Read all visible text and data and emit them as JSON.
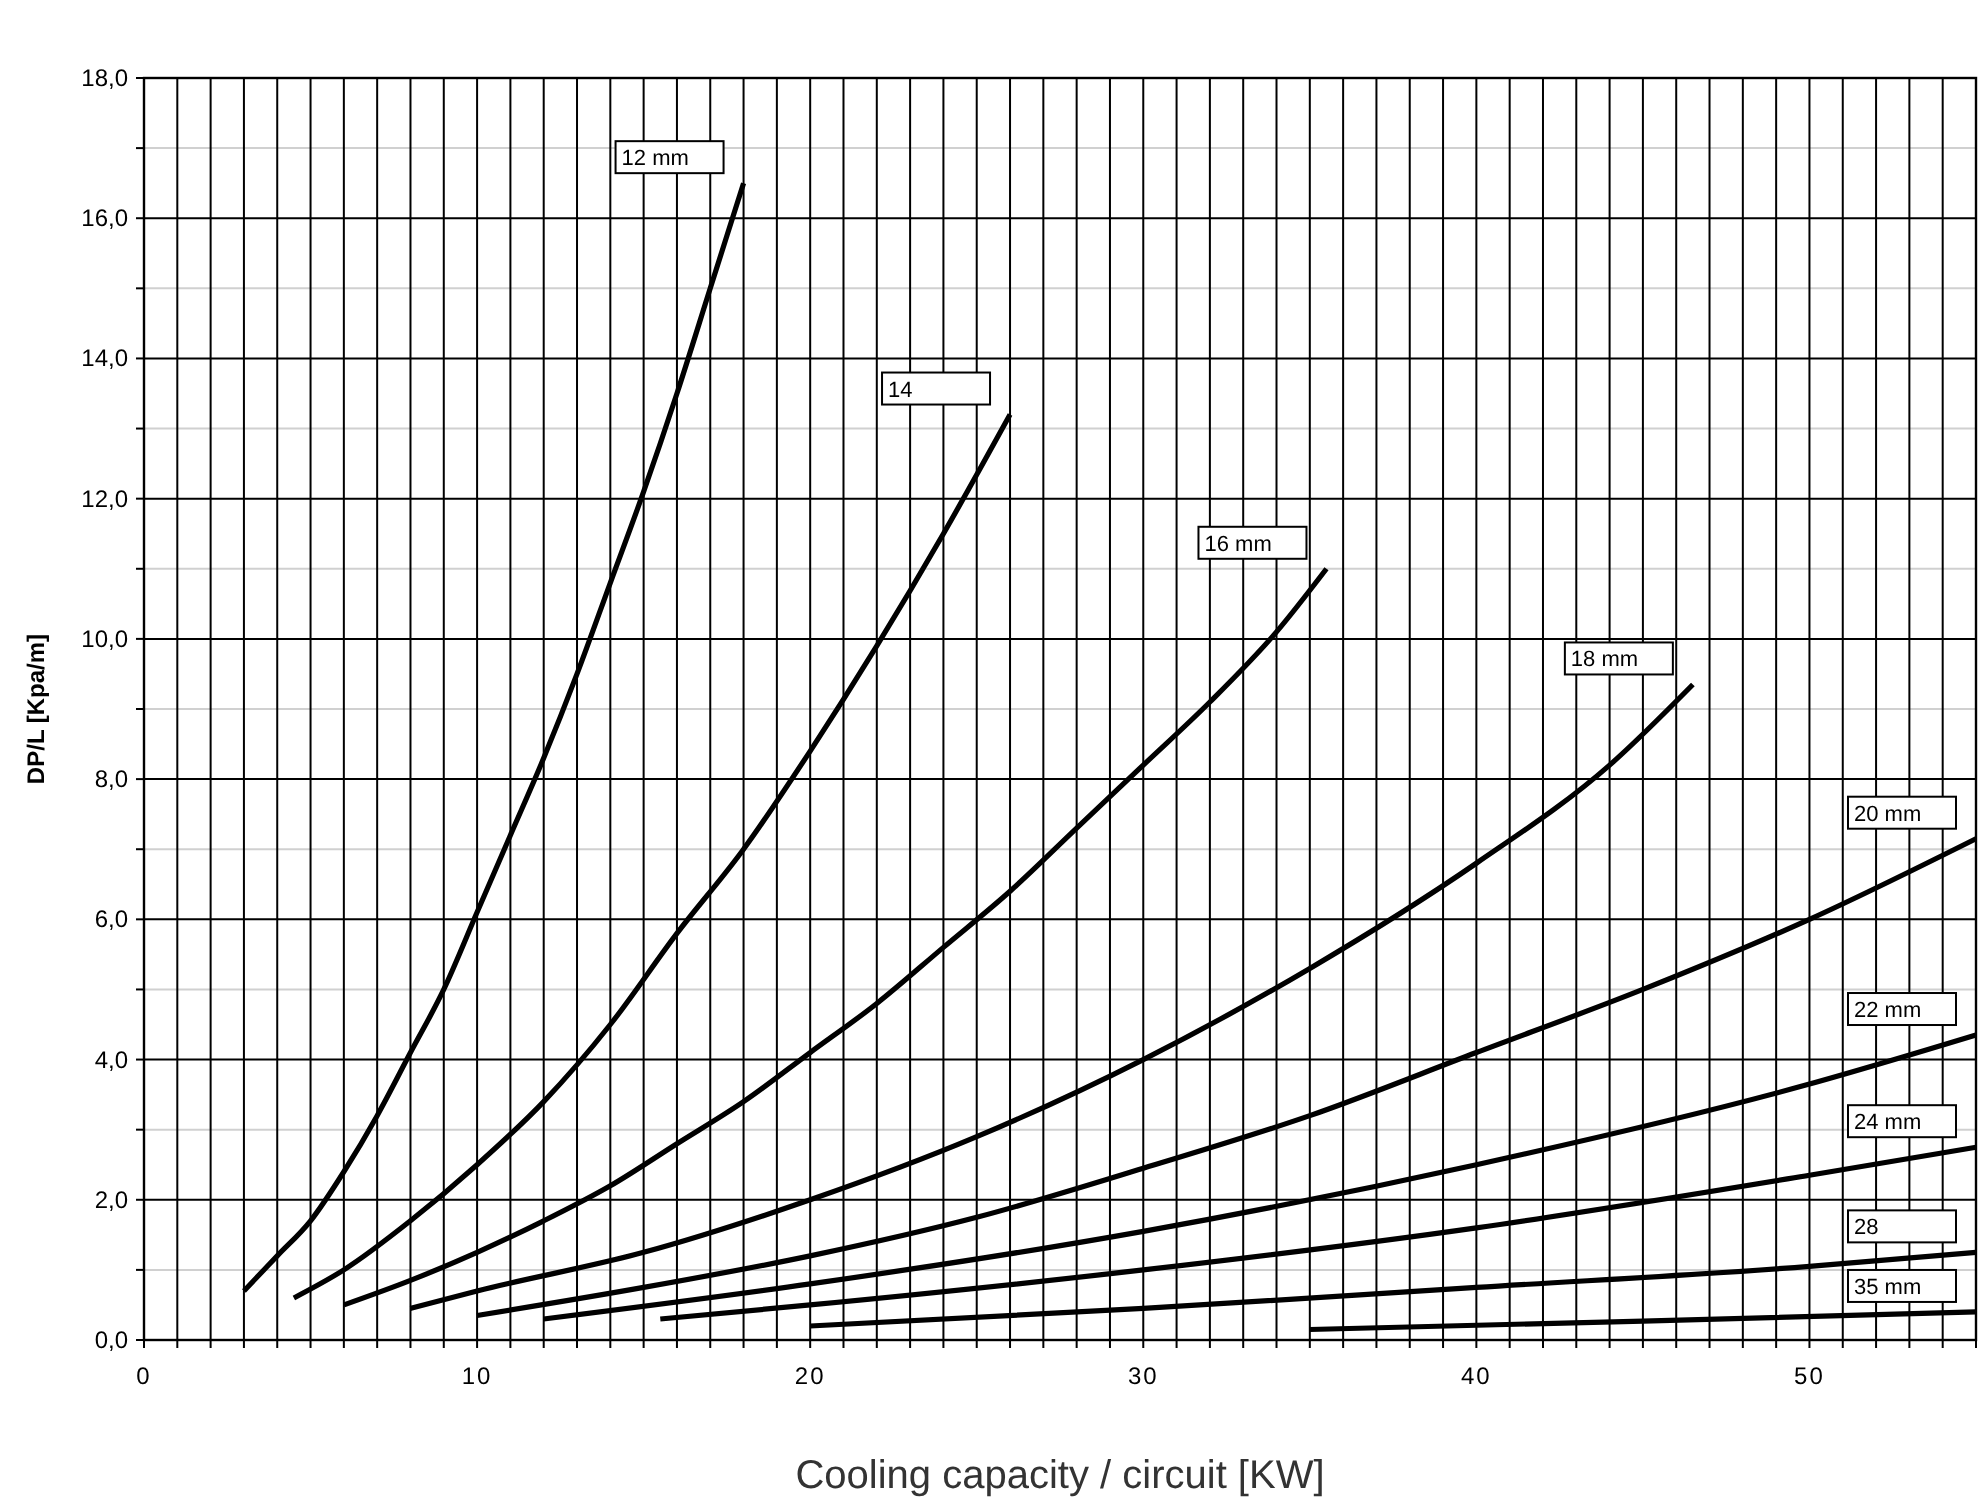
{
  "chart_data": {
    "type": "line",
    "xlabel": "Cooling capacity / circuit [KW]",
    "ylabel": "DP/L [Kpa/m]",
    "xlim": [
      0,
      55
    ],
    "ylim": [
      0,
      18
    ],
    "xticks": [
      0,
      {
        "value": 1,
        "label": null
      },
      {
        "value": 2,
        "label": null
      },
      {
        "value": 3,
        "label": null
      },
      {
        "value": 4,
        "label": null
      },
      {
        "value": 5,
        "label": null
      },
      {
        "value": 6,
        "label": null
      },
      {
        "value": 7,
        "label": null
      },
      {
        "value": 8,
        "label": null
      },
      {
        "value": 9,
        "label": null
      },
      10,
      {
        "value": 11,
        "label": null
      },
      {
        "value": 12,
        "label": null
      },
      {
        "value": 13,
        "label": null
      },
      {
        "value": 14,
        "label": null
      },
      {
        "value": 15,
        "label": null
      },
      {
        "value": 16,
        "label": null
      },
      {
        "value": 17,
        "label": null
      },
      {
        "value": 18,
        "label": null
      },
      {
        "value": 19,
        "label": null
      },
      20,
      {
        "value": 21,
        "label": null
      },
      {
        "value": 22,
        "label": null
      },
      {
        "value": 23,
        "label": null
      },
      {
        "value": 24,
        "label": null
      },
      {
        "value": 25,
        "label": null
      },
      {
        "value": 26,
        "label": null
      },
      {
        "value": 27,
        "label": null
      },
      {
        "value": 28,
        "label": null
      },
      {
        "value": 29,
        "label": null
      },
      30,
      {
        "value": 31,
        "label": null
      },
      {
        "value": 32,
        "label": null
      },
      {
        "value": 33,
        "label": null
      },
      {
        "value": 34,
        "label": null
      },
      {
        "value": 35,
        "label": null
      },
      {
        "value": 36,
        "label": null
      },
      {
        "value": 37,
        "label": null
      },
      {
        "value": 38,
        "label": null
      },
      {
        "value": 39,
        "label": null
      },
      40,
      {
        "value": 41,
        "label": null
      },
      {
        "value": 42,
        "label": null
      },
      {
        "value": 43,
        "label": null
      },
      {
        "value": 44,
        "label": null
      },
      {
        "value": 45,
        "label": null
      },
      {
        "value": 46,
        "label": null
      },
      {
        "value": 47,
        "label": null
      },
      {
        "value": 48,
        "label": null
      },
      {
        "value": 49,
        "label": null
      },
      50,
      {
        "value": 51,
        "label": null
      },
      {
        "value": 52,
        "label": null
      },
      {
        "value": 53,
        "label": null
      },
      {
        "value": 54,
        "label": null
      },
      {
        "value": 55,
        "label": null
      }
    ],
    "yticks": [
      {
        "value": 0,
        "label": "0,0"
      },
      {
        "value": 1,
        "label": null
      },
      {
        "value": 2,
        "label": "2,0"
      },
      {
        "value": 3,
        "label": null
      },
      {
        "value": 4,
        "label": "4,0"
      },
      {
        "value": 5,
        "label": null
      },
      {
        "value": 6,
        "label": "6,0"
      },
      {
        "value": 7,
        "label": null
      },
      {
        "value": 8,
        "label": "8,0"
      },
      {
        "value": 9,
        "label": null
      },
      {
        "value": 10,
        "label": "10,0"
      },
      {
        "value": 11,
        "label": null
      },
      {
        "value": 12,
        "label": "12,0"
      },
      {
        "value": 13,
        "label": null
      },
      {
        "value": 14,
        "label": "14,0"
      },
      {
        "value": 15,
        "label": null
      },
      {
        "value": 16,
        "label": "16,0"
      },
      {
        "value": 17,
        "label": null
      },
      {
        "value": 18,
        "label": "18,0"
      }
    ],
    "grid": true,
    "marker": "none",
    "line_style": "solid",
    "series": [
      {
        "name": "12 mm",
        "color": "#000000",
        "x": [
          3,
          4,
          5,
          6,
          7,
          8,
          9,
          10,
          11,
          12,
          13,
          14,
          15,
          16,
          17,
          18
        ],
        "values": [
          0.7,
          1.2,
          1.7,
          2.4,
          3.2,
          4.1,
          5.0,
          6.1,
          7.2,
          8.3,
          9.5,
          10.8,
          12.1,
          13.5,
          15.0,
          16.5
        ]
      },
      {
        "name": "14",
        "color": "#000000",
        "x": [
          4.5,
          6,
          8,
          10,
          12,
          14,
          16,
          18,
          20,
          22,
          24,
          26
        ],
        "values": [
          0.6,
          1.0,
          1.7,
          2.5,
          3.4,
          4.5,
          5.8,
          7.0,
          8.4,
          9.9,
          11.5,
          13.2
        ]
      },
      {
        "name": "16 mm",
        "color": "#000000",
        "x": [
          6,
          8,
          10,
          12,
          14,
          16,
          18,
          20,
          22,
          24,
          26,
          28,
          30,
          32,
          34,
          35.5
        ],
        "values": [
          0.5,
          0.85,
          1.25,
          1.7,
          2.2,
          2.8,
          3.4,
          4.1,
          4.8,
          5.6,
          6.4,
          7.3,
          8.2,
          9.1,
          10.1,
          11.0
        ]
      },
      {
        "name": "18 mm",
        "color": "#000000",
        "x": [
          8,
          10,
          15,
          20,
          25,
          30,
          35,
          40,
          44,
          46.5
        ],
        "values": [
          0.45,
          0.7,
          1.25,
          2.0,
          2.9,
          4.0,
          5.3,
          6.8,
          8.2,
          9.35
        ]
      },
      {
        "name": "20 mm",
        "color": "#000000",
        "x": [
          10,
          15,
          20,
          25,
          30,
          35,
          40,
          45,
          50,
          55
        ],
        "values": [
          0.35,
          0.75,
          1.2,
          1.75,
          2.45,
          3.2,
          4.1,
          5.0,
          6.0,
          7.15
        ]
      },
      {
        "name": "22 mm",
        "color": "#000000",
        "x": [
          12,
          20,
          30,
          40,
          50,
          55
        ],
        "values": [
          0.3,
          0.8,
          1.55,
          2.5,
          3.65,
          4.35
        ]
      },
      {
        "name": "24 mm",
        "color": "#000000",
        "x": [
          15.5,
          20,
          30,
          40,
          50,
          55
        ],
        "values": [
          0.3,
          0.5,
          1.0,
          1.6,
          2.35,
          2.75
        ]
      },
      {
        "name": "28",
        "color": "#000000",
        "x": [
          20,
          30,
          40,
          50,
          55
        ],
        "values": [
          0.2,
          0.45,
          0.75,
          1.05,
          1.25
        ]
      },
      {
        "name": "35 mm",
        "color": "#000000",
        "x": [
          35,
          45,
          55
        ],
        "values": [
          0.15,
          0.27,
          0.4
        ]
      }
    ]
  }
}
